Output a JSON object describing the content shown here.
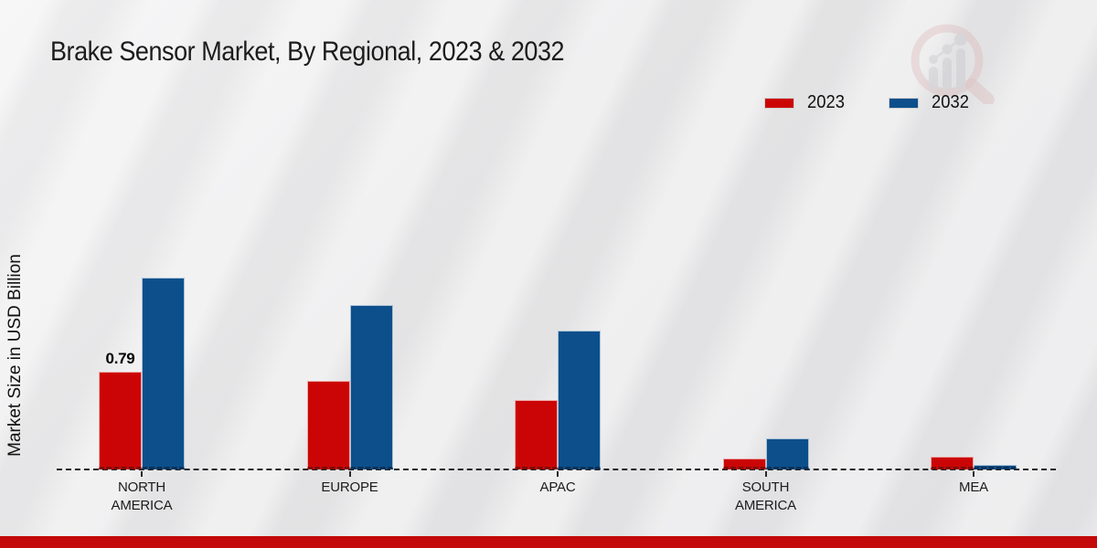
{
  "page": {
    "title": "Brake Sensor Market, By Regional, 2023 & 2032",
    "footer_color": "#c30909",
    "watermark_icon": "magnifier-bar-chart-logo"
  },
  "chart_data": {
    "type": "bar",
    "title": "Brake Sensor Market, By Regional, 2023 & 2032",
    "xlabel": "",
    "ylabel": "Market Size in USD Billion",
    "categories": [
      "NORTH AMERICA",
      "EUROPE",
      "APAC",
      "SOUTH AMERICA",
      "MEA"
    ],
    "series": [
      {
        "name": "2023",
        "color": "#cb0505",
        "edge_dark": "#7d0a0a",
        "values": [
          0.79,
          0.72,
          0.56,
          0.09,
          0.1
        ]
      },
      {
        "name": "2032",
        "color": "#0d4f8b",
        "edge_dark": "#0a3057",
        "values": [
          1.55,
          1.33,
          1.12,
          0.25,
          0.04
        ]
      }
    ],
    "annotations": [
      {
        "series": "2023",
        "category": "NORTH AMERICA",
        "text": "0.79",
        "value": 0.79
      }
    ],
    "ylim": [
      0,
      1.6
    ],
    "grid": false,
    "legend_position": "top-right",
    "baseline_style": "dashed",
    "y_axis_ticks_visible": false
  }
}
